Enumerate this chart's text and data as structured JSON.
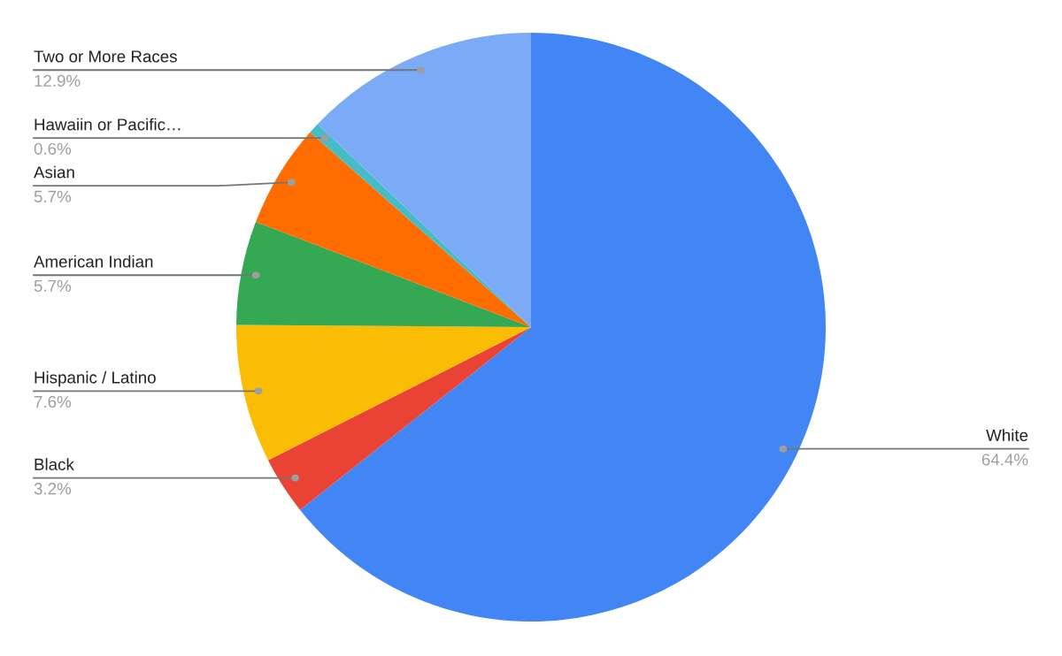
{
  "chart_data": {
    "type": "pie",
    "categories": [
      "White",
      "Black",
      "Hispanic / Latino",
      "American Indian",
      "Asian",
      "Hawaiin or Pacific…",
      "Two or More Races"
    ],
    "values": [
      64.4,
      3.2,
      7.6,
      5.7,
      5.7,
      0.6,
      12.9
    ],
    "value_labels": [
      "64.4%",
      "3.2%",
      "7.6%",
      "5.7%",
      "5.7%",
      "0.6%",
      "12.9%"
    ],
    "colors": [
      "#4285f4",
      "#ea4335",
      "#fbbc04",
      "#34a853",
      "#ff6d01",
      "#46bdc6",
      "#7baaf7"
    ],
    "legend": false
  }
}
